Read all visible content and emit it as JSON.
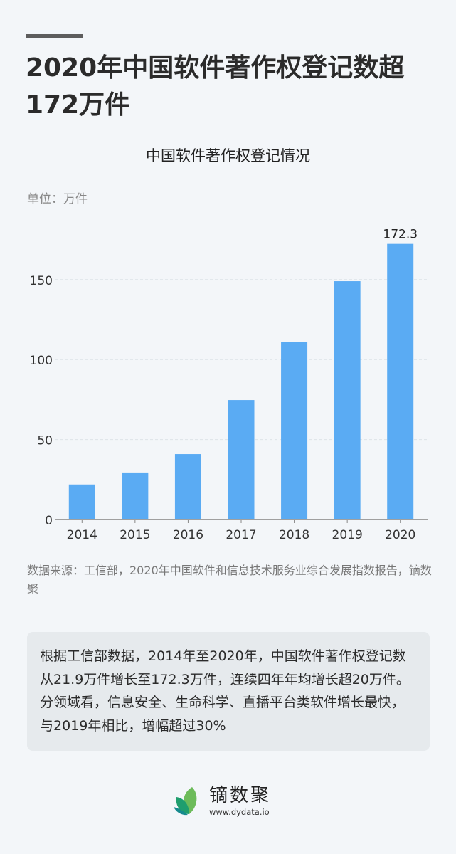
{
  "header": {
    "headline": "2020年中国软件著作权登记数超172万件"
  },
  "chart_meta": {
    "unit_label": "单位：万件",
    "top_value_label": "172.3"
  },
  "chart_data": {
    "type": "bar",
    "title": "中国软件著作权登记情况",
    "xlabel": "",
    "ylabel": "单位：万件",
    "categories": [
      "2014",
      "2015",
      "2016",
      "2017",
      "2018",
      "2019",
      "2020"
    ],
    "values": [
      21.9,
      29.4,
      40.9,
      74.7,
      111.0,
      149.0,
      172.3
    ],
    "data_labels": [
      {
        "category": "2020",
        "text": "172.3"
      }
    ],
    "ylim": [
      0,
      180
    ],
    "yticks": [
      0,
      50,
      100,
      150
    ],
    "grid": true,
    "grid_style": "dashed horizontal",
    "bar_color": "#5aabf3",
    "legend": null
  },
  "footnote": {
    "text": "数据来源：工信部，2020年中国软件和信息技术服务业综合发展指数报告，镝数聚"
  },
  "summary": {
    "text": "根据工信部数据，2014年至2020年，中国软件著作权登记数从21.9万件增长至172.3万件，连续四年年均增长超20万件。分领域看，信息安全、生命科学、直播平台类软件增长最快，与2019年相比，增幅超过30%"
  },
  "brand": {
    "name": "镝数聚",
    "url": "www.dydata.io",
    "colors": {
      "leaf_light": "#6cbb5a",
      "leaf_mid": "#1f9e6e",
      "leaf_dark": "#168a8e"
    }
  }
}
